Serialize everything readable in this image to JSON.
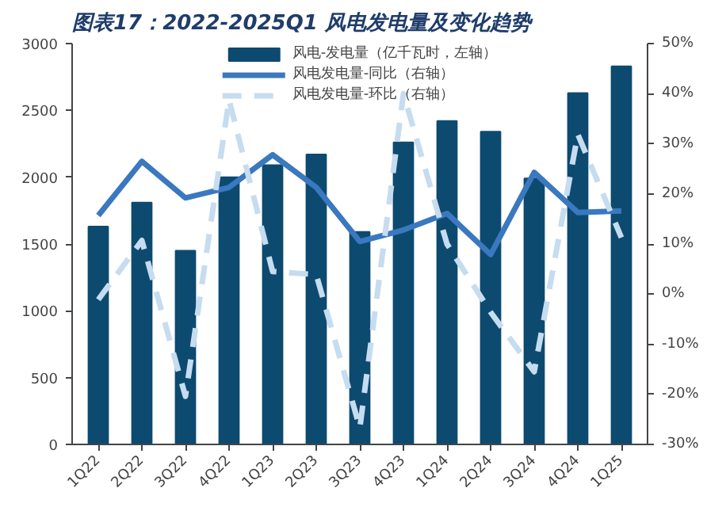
{
  "chart_data": {
    "type": "bar",
    "title": "图表17：2022-2025Q1 风电发电量及变化趋势",
    "categories": [
      "1Q22",
      "2Q22",
      "3Q22",
      "4Q22",
      "1Q23",
      "2Q23",
      "3Q23",
      "4Q23",
      "1Q24",
      "2Q24",
      "3Q24",
      "4Q24",
      "1Q25"
    ],
    "series": [
      {
        "name": "风电-发电量（亿千瓦时，左轴）",
        "color": "#0d4a70",
        "values": [
          1630,
          1810,
          1450,
          2000,
          2090,
          2170,
          1590,
          2260,
          2420,
          2340,
          1990,
          2630,
          2830
        ]
      },
      {
        "name": "风电发电量-同比（右轴）",
        "type": "line",
        "axis": "y2",
        "line_style": "solid",
        "color": "#3a78bf",
        "values": [
          15.7,
          26.5,
          19.2,
          21.3,
          27.8,
          21.3,
          10.5,
          12.8,
          16.1,
          7.9,
          24.3,
          16.3,
          16.6
        ]
      },
      {
        "name": "风电发电量-环比（右轴）",
        "type": "line",
        "axis": "y2",
        "line_style": "dashed",
        "color": "#c6dcef",
        "values": [
          -1.1,
          10.7,
          -20.4,
          38.8,
          4.5,
          3.9,
          -26.7,
          40.0,
          10.0,
          -3.6,
          -15.5,
          31.9,
          11.3
        ]
      }
    ],
    "ylim": [
      0,
      3000
    ],
    "yticks": [
      0,
      500,
      1000,
      1500,
      2000,
      2500,
      3000
    ],
    "y2lim": [
      -30,
      50
    ],
    "y2ticks": [
      {
        "value": -30,
        "label": "-30%"
      },
      {
        "value": -20,
        "label": "-20%"
      },
      {
        "value": -10,
        "label": "-10%"
      },
      {
        "value": 0,
        "label": "0%"
      },
      {
        "value": 10,
        "label": "10%"
      },
      {
        "value": 20,
        "label": "20%"
      },
      {
        "value": 30,
        "label": "30%"
      },
      {
        "value": 40,
        "label": "40%"
      },
      {
        "value": 50,
        "label": "50%"
      }
    ],
    "legend": "top"
  }
}
